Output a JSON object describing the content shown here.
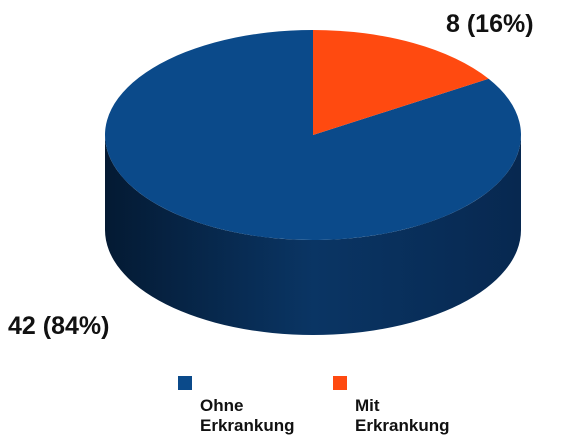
{
  "chart_data": {
    "type": "pie3d",
    "categories": [
      "Ohne Erkrankung",
      "Mit Erkrankung"
    ],
    "values": [
      42,
      8
    ],
    "value_labels": [
      "42 (84%)",
      "8 (16%)"
    ],
    "colors": [
      "#0b4a8a",
      "#ff4a10"
    ]
  }
}
